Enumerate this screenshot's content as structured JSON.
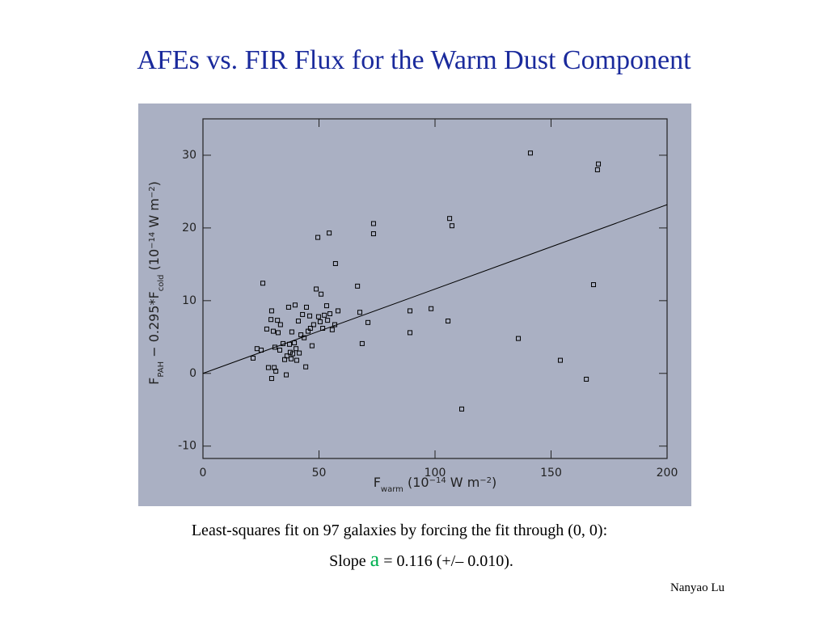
{
  "title": "AFEs vs. FIR Flux for the Warm Dust Component",
  "caption_line1": "Least-squares fit on 97 galaxies by forcing the fit through (0, 0):",
  "caption_line2": [
    "Slope ",
    "a",
    " = 0.116 (+/– 0.010)."
  ],
  "author": "Nanyao Lu",
  "chart_data": {
    "type": "scatter",
    "xlabel_parts": [
      "F",
      "warm",
      " (10",
      "−14",
      " W m",
      "−2",
      ")"
    ],
    "ylabel_parts": [
      "F",
      "PAH",
      " − 0.295*F",
      "cold",
      " (10",
      "−14",
      " W m",
      "−2",
      ")"
    ],
    "xlim": [
      0,
      200
    ],
    "ylim": [
      -11.7,
      35
    ],
    "xticks": [
      0,
      50,
      100,
      150,
      200
    ],
    "yticks": [
      -10,
      0,
      10,
      20,
      30
    ],
    "color": "#000000",
    "fit_line": {
      "x": [
        0,
        200
      ],
      "y": [
        0,
        23.2
      ],
      "color": "#000000"
    },
    "x": [
      21.6,
      23.3,
      25.8,
      25.1,
      27.5,
      28.2,
      29.3,
      29.6,
      29.6,
      30.3,
      30.7,
      31,
      31.4,
      32.1,
      32.4,
      33.1,
      33.4,
      34.5,
      35.2,
      35.9,
      36.2,
      36.9,
      37.3,
      37.6,
      38,
      38.3,
      38.7,
      39.4,
      39.7,
      40.1,
      40.4,
      41.1,
      41.5,
      42.2,
      42.9,
      43.6,
      44.3,
      44.6,
      45.3,
      46,
      46.3,
      47,
      47.7,
      48.8,
      49.5,
      49.8,
      50.5,
      50.9,
      51.6,
      52.3,
      53.3,
      53.7,
      54.4,
      54.7,
      55.7,
      56.8,
      57.1,
      58.2,
      66.6,
      67.6,
      68.6,
      71.1,
      73.5,
      73.5,
      89.2,
      89.2,
      98.3,
      105.6,
      106.3,
      107.3,
      111.5,
      135.9,
      141.1,
      154,
      165.2,
      168.3,
      170,
      170.4
    ],
    "y": [
      2.1,
      3.4,
      12.4,
      3.2,
      6.1,
      0.8,
      7.4,
      8.6,
      -0.7,
      5.8,
      0.8,
      3.6,
      0.3,
      7.3,
      5.6,
      3.2,
      6.7,
      4.1,
      1.9,
      -0.2,
      2.4,
      9.1,
      4,
      2.9,
      2,
      5.7,
      2.7,
      4.2,
      9.4,
      3.4,
      1.8,
      7.2,
      2.8,
      5.3,
      8.1,
      4.9,
      0.9,
      9.1,
      5.8,
      7.9,
      6.2,
      3.8,
      6.7,
      11.6,
      18.7,
      7.8,
      7.1,
      10.9,
      6.2,
      8,
      9.3,
      7.3,
      19.3,
      8.2,
      6,
      6.7,
      15.1,
      8.6,
      12,
      8.4,
      4.1,
      7,
      20.6,
      19.2,
      8.6,
      5.6,
      8.9,
      7.2,
      21.3,
      20.3,
      -4.9,
      4.8,
      30.3,
      1.8,
      -0.8,
      12.2,
      28,
      28.8
    ]
  }
}
